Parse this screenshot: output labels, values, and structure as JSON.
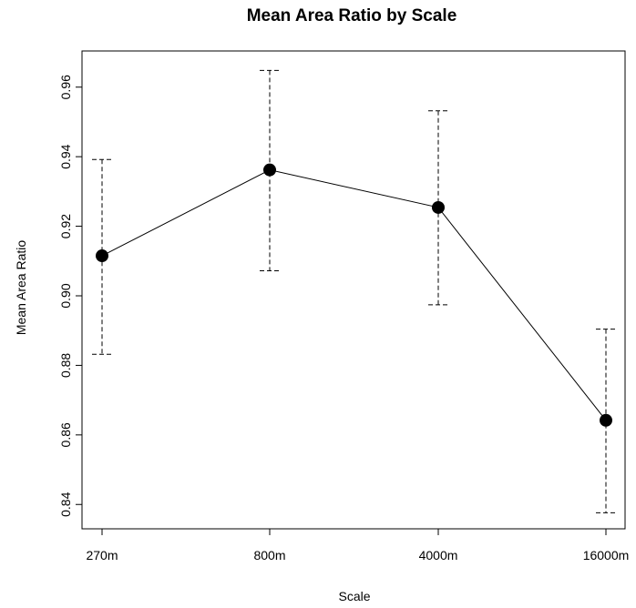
{
  "chart_data": {
    "type": "line",
    "title": "Mean Area Ratio by Scale",
    "xlabel": "Scale",
    "ylabel": "Mean Area Ratio",
    "categories": [
      "270m",
      "800m",
      "4000m",
      "16000m"
    ],
    "series": [
      {
        "values": [
          0.9115,
          0.9362,
          0.9254,
          0.8642
        ],
        "lower": [
          0.8832,
          0.9072,
          0.8974,
          0.8376
        ],
        "upper": [
          0.9392,
          0.9648,
          0.9532,
          0.8904
        ]
      }
    ],
    "ylim": [
      0.833,
      0.9704
    ],
    "yticks": [
      "0.84",
      "0.86",
      "0.88",
      "0.90",
      "0.92",
      "0.94",
      "0.96"
    ],
    "grid": false,
    "legend": "none",
    "error_bars": "dashed"
  }
}
